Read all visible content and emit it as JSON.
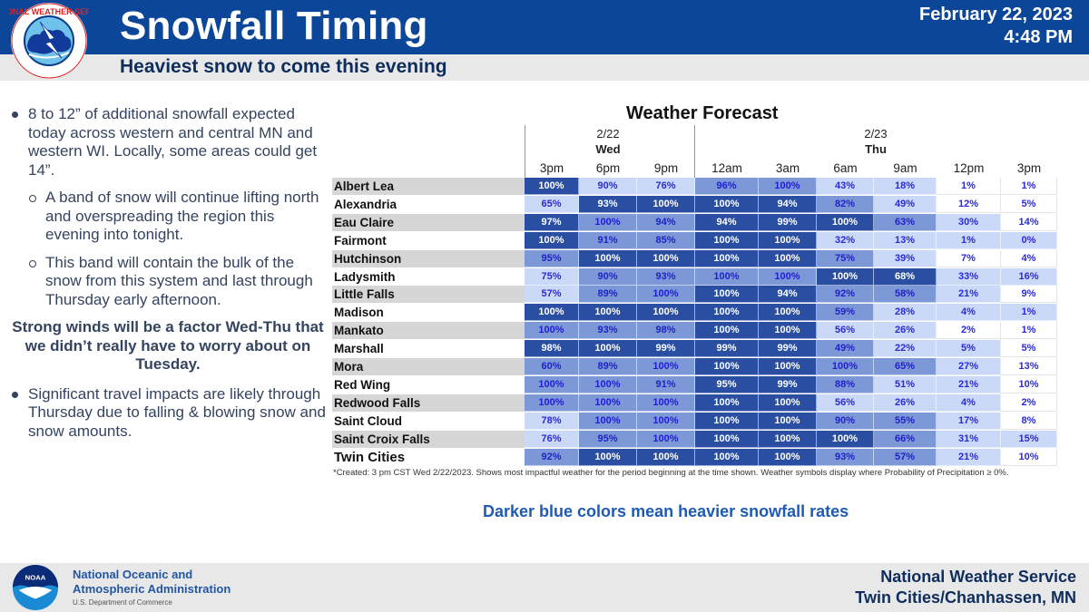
{
  "header": {
    "title": "Snowfall Timing",
    "subtitle": "Heaviest snow to come this evening",
    "date": "February 22, 2023",
    "time": "4:48 PM",
    "logo_text": "NATIONAL WEATHER SERVICE"
  },
  "bullets": {
    "b1": "8 to 12” of additional snowfall expected today across western and central MN and western WI. Locally, some areas could get 14”.",
    "b1a": "A band of snow will continue lifting north and overspreading the region this evening into tonight.",
    "b1b": "This band will contain the bulk of the snow from this system and last through Thursday early afternoon.",
    "emphasis": "Strong winds will be a factor Wed-Thu that we didn’t really have to worry about on Tuesday.",
    "b2": "Significant travel impacts are likely through Thursday due to falling & blowing snow and snow amounts."
  },
  "table": {
    "title": "Weather Forecast",
    "day_groups": [
      {
        "date": "2/22",
        "day": "Wed"
      },
      {
        "date": "2/23",
        "day": "Thu"
      }
    ],
    "columns": [
      "3pm",
      "6pm",
      "9pm",
      "12am",
      "3am",
      "6am",
      "9am",
      "12pm",
      "3pm"
    ],
    "rows": [
      {
        "name": "Albert Lea",
        "values": [
          "100%",
          "90%",
          "76%",
          "96%",
          "100%",
          "43%",
          "18%",
          "1%",
          "1%"
        ],
        "shade": [
          3,
          1,
          1,
          2,
          2,
          1,
          1,
          0,
          0
        ]
      },
      {
        "name": "Alexandria",
        "values": [
          "65%",
          "93%",
          "100%",
          "100%",
          "94%",
          "82%",
          "49%",
          "12%",
          "5%"
        ],
        "shade": [
          1,
          3,
          3,
          3,
          3,
          2,
          1,
          0,
          0
        ]
      },
      {
        "name": "Eau Claire",
        "values": [
          "97%",
          "100%",
          "94%",
          "94%",
          "99%",
          "100%",
          "63%",
          "30%",
          "14%"
        ],
        "shade": [
          3,
          2,
          2,
          3,
          3,
          3,
          2,
          1,
          0
        ]
      },
      {
        "name": "Fairmont",
        "values": [
          "100%",
          "91%",
          "85%",
          "100%",
          "100%",
          "32%",
          "13%",
          "1%",
          "0%"
        ],
        "shade": [
          3,
          2,
          2,
          3,
          3,
          1,
          1,
          1,
          1
        ]
      },
      {
        "name": "Hutchinson",
        "values": [
          "95%",
          "100%",
          "100%",
          "100%",
          "100%",
          "75%",
          "39%",
          "7%",
          "4%"
        ],
        "shade": [
          2,
          3,
          3,
          3,
          3,
          2,
          1,
          0,
          0
        ]
      },
      {
        "name": "Ladysmith",
        "values": [
          "75%",
          "90%",
          "93%",
          "100%",
          "100%",
          "100%",
          "68%",
          "33%",
          "16%"
        ],
        "shade": [
          1,
          2,
          2,
          2,
          2,
          3,
          3,
          1,
          1
        ]
      },
      {
        "name": "Little Falls",
        "values": [
          "57%",
          "89%",
          "100%",
          "100%",
          "94%",
          "92%",
          "58%",
          "21%",
          "9%"
        ],
        "shade": [
          1,
          2,
          2,
          3,
          3,
          2,
          2,
          1,
          0
        ]
      },
      {
        "name": "Madison",
        "values": [
          "100%",
          "100%",
          "100%",
          "100%",
          "100%",
          "59%",
          "28%",
          "4%",
          "1%"
        ],
        "shade": [
          3,
          3,
          3,
          3,
          3,
          2,
          1,
          1,
          1
        ]
      },
      {
        "name": "Mankato",
        "values": [
          "100%",
          "93%",
          "98%",
          "100%",
          "100%",
          "56%",
          "26%",
          "2%",
          "1%"
        ],
        "shade": [
          2,
          2,
          2,
          3,
          3,
          1,
          1,
          0,
          0
        ]
      },
      {
        "name": "Marshall",
        "values": [
          "98%",
          "100%",
          "99%",
          "99%",
          "99%",
          "49%",
          "22%",
          "5%",
          "5%"
        ],
        "shade": [
          3,
          3,
          3,
          3,
          3,
          2,
          1,
          1,
          0
        ]
      },
      {
        "name": "Mora",
        "values": [
          "60%",
          "89%",
          "100%",
          "100%",
          "100%",
          "100%",
          "65%",
          "27%",
          "13%"
        ],
        "shade": [
          2,
          2,
          2,
          3,
          3,
          2,
          2,
          1,
          0
        ]
      },
      {
        "name": "Red Wing",
        "values": [
          "100%",
          "100%",
          "91%",
          "95%",
          "99%",
          "88%",
          "51%",
          "21%",
          "10%"
        ],
        "shade": [
          2,
          2,
          2,
          3,
          3,
          2,
          1,
          1,
          0
        ]
      },
      {
        "name": "Redwood Falls",
        "values": [
          "100%",
          "100%",
          "100%",
          "100%",
          "100%",
          "56%",
          "26%",
          "4%",
          "2%"
        ],
        "shade": [
          2,
          2,
          2,
          3,
          3,
          1,
          1,
          1,
          0
        ]
      },
      {
        "name": "Saint Cloud",
        "values": [
          "78%",
          "100%",
          "100%",
          "100%",
          "100%",
          "90%",
          "55%",
          "17%",
          "8%"
        ],
        "shade": [
          1,
          2,
          2,
          3,
          3,
          2,
          2,
          1,
          0
        ]
      },
      {
        "name": "Saint Croix Falls",
        "values": [
          "76%",
          "95%",
          "100%",
          "100%",
          "100%",
          "100%",
          "66%",
          "31%",
          "15%"
        ],
        "shade": [
          1,
          2,
          2,
          3,
          3,
          3,
          2,
          1,
          1
        ]
      },
      {
        "name": "Twin Cities",
        "values": [
          "92%",
          "100%",
          "100%",
          "100%",
          "100%",
          "93%",
          "57%",
          "21%",
          "10%"
        ],
        "shade": [
          2,
          3,
          3,
          3,
          3,
          2,
          2,
          1,
          0
        ]
      }
    ],
    "footnote": "*Created: 3 pm CST Wed 2/22/2023. Shows most impactful weather for the period beginning at the time shown. Weather symbols display where Probability of Precipitation ≥ 0%."
  },
  "legend_note": "Darker blue colors mean heavier snowfall rates",
  "colors": {
    "header_blue": "#0b4699",
    "shade_0": "#ffffff",
    "shade_1": "#c9d9f7",
    "shade_2": "#7d98d6",
    "shade_3": "#2a4fa2"
  },
  "footer": {
    "noaa_line1": "National Oceanic and",
    "noaa_line2": "Atmospheric Administration",
    "noaa_dept": "U.S. Department of Commerce",
    "noaa_logo_text": "NOAA",
    "office_line1": "National Weather Service",
    "office_line2": "Twin Cities/Chanhassen, MN"
  }
}
